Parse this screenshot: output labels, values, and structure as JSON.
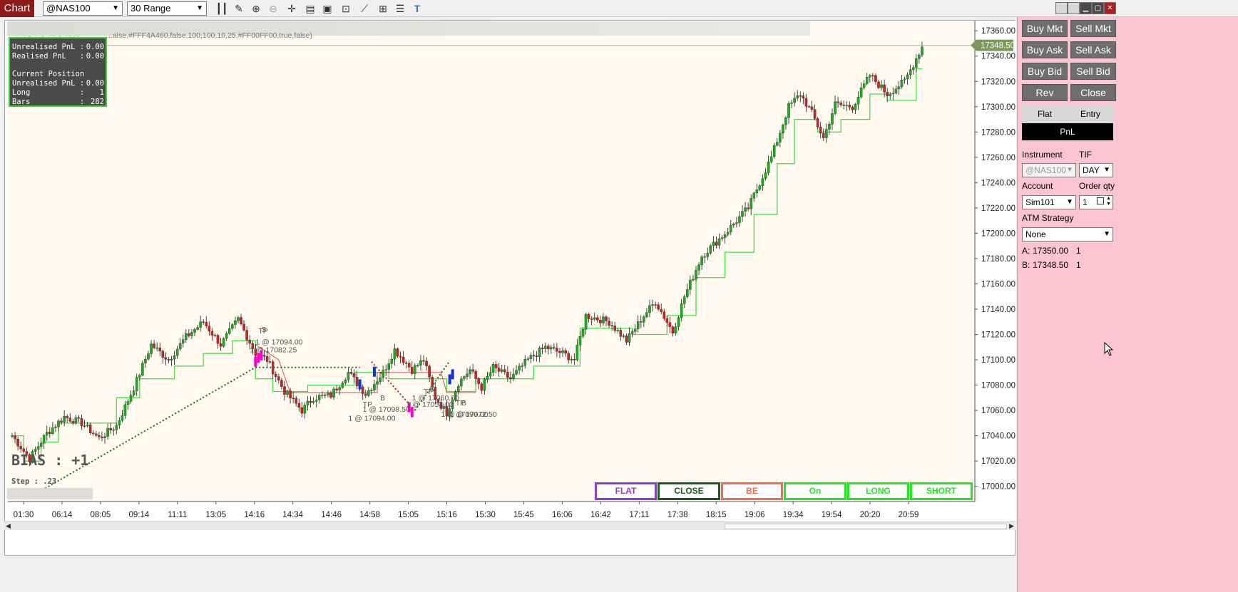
{
  "toolbar": {
    "tab_label": "Chart",
    "instrument_value": "@NAS100",
    "period_value": "30 Range"
  },
  "chart": {
    "watermark": "@NAS100",
    "params_text": "..alse,#FFF4A460,false,100,100,10,25,#FF00FF00,true,false)",
    "last_price_label": "17348.50",
    "bias_text": "BIAS : +1",
    "step_text": "Step : .23",
    "info": [
      {
        "label": "Unrealised PnL :",
        "value": "0.00"
      },
      {
        "label": "Realised PnL   :",
        "value": "0.00"
      },
      {
        "label": "",
        "value": ""
      },
      {
        "label": "Current Position",
        "value": ""
      },
      {
        "label": "Unrealised PnL :",
        "value": "0.00"
      },
      {
        "label": "Long           :",
        "value": "1"
      },
      {
        "label": "Bars           :",
        "value": "282"
      }
    ],
    "trade_labels": [
      {
        "text": "TP",
        "price": 17121,
        "bar": 85
      },
      {
        "text": "S",
        "price": 17122,
        "bar": 86
      },
      {
        "text": "1 @ 17094.00",
        "price": 17112,
        "bar": 84
      },
      {
        "text": "1 @ 17082.25",
        "price": 17106,
        "bar": 82
      },
      {
        "text": "B",
        "price": 17068,
        "bar": 127
      },
      {
        "text": "TP",
        "price": 17063,
        "bar": 121
      },
      {
        "text": "1 @ 17098.50",
        "price": 17059,
        "bar": 121
      },
      {
        "text": "1 @ 17094.00",
        "price": 17052,
        "bar": 116
      },
      {
        "text": "TP",
        "price": 17073,
        "bar": 142
      },
      {
        "text": "S",
        "price": 17075,
        "bar": 144
      },
      {
        "text": "1 @ 17060.00",
        "price": 17068,
        "bar": 138
      },
      {
        "text": "1 @ 17053.00",
        "price": 17063,
        "bar": 136
      },
      {
        "text": "TP",
        "price": 17064,
        "bar": 153
      },
      {
        "text": "B",
        "price": 17064,
        "bar": 155
      },
      {
        "text": "1 @ 17099.00",
        "price": 17055,
        "bar": 148
      },
      {
        "text": "1 @ 17072.50",
        "price": 17055,
        "bar": 151
      }
    ]
  },
  "chart_data": {
    "type": "candlestick",
    "y_range": [
      16988,
      17368
    ],
    "y_ticks": [
      17000,
      17020,
      17040,
      17060,
      17080,
      17100,
      17120,
      17140,
      17160,
      17180,
      17200,
      17220,
      17240,
      17260,
      17280,
      17300,
      17320,
      17340,
      17360
    ],
    "x_tick_labels": [
      "01:30",
      "06:14",
      "08:05",
      "09:14",
      "11:11",
      "13:05",
      "14:16",
      "14:34",
      "14:46",
      "14:58",
      "15:05",
      "15:16",
      "15:30",
      "15:45",
      "16:06",
      "16:42",
      "17:11",
      "17:38",
      "18:15",
      "19:06",
      "19:34",
      "19:54",
      "20:20",
      "20:59"
    ],
    "bar_count": 315,
    "last_price": 17348.5,
    "anchors": [
      [
        0,
        17040
      ],
      [
        6,
        17022
      ],
      [
        12,
        17042
      ],
      [
        18,
        17055
      ],
      [
        24,
        17050
      ],
      [
        30,
        17038
      ],
      [
        36,
        17048
      ],
      [
        42,
        17078
      ],
      [
        48,
        17112
      ],
      [
        54,
        17100
      ],
      [
        60,
        17118
      ],
      [
        66,
        17130
      ],
      [
        72,
        17112
      ],
      [
        78,
        17132
      ],
      [
        84,
        17105
      ],
      [
        88,
        17100
      ],
      [
        94,
        17075
      ],
      [
        100,
        17060
      ],
      [
        104,
        17070
      ],
      [
        110,
        17072
      ],
      [
        116,
        17090
      ],
      [
        122,
        17073
      ],
      [
        128,
        17090
      ],
      [
        132,
        17108
      ],
      [
        138,
        17092
      ],
      [
        142,
        17100
      ],
      [
        146,
        17070
      ],
      [
        150,
        17058
      ],
      [
        154,
        17082
      ],
      [
        158,
        17092
      ],
      [
        162,
        17078
      ],
      [
        166,
        17094
      ],
      [
        172,
        17085
      ],
      [
        178,
        17100
      ],
      [
        184,
        17110
      ],
      [
        190,
        17105
      ],
      [
        194,
        17100
      ],
      [
        198,
        17135
      ],
      [
        206,
        17130
      ],
      [
        212,
        17115
      ],
      [
        218,
        17135
      ],
      [
        222,
        17146
      ],
      [
        228,
        17122
      ],
      [
        232,
        17150
      ],
      [
        238,
        17182
      ],
      [
        246,
        17200
      ],
      [
        254,
        17220
      ],
      [
        262,
        17260
      ],
      [
        268,
        17300
      ],
      [
        272,
        17310
      ],
      [
        276,
        17295
      ],
      [
        280,
        17275
      ],
      [
        284,
        17302
      ],
      [
        290,
        17300
      ],
      [
        296,
        17325
      ],
      [
        302,
        17310
      ],
      [
        308,
        17320
      ],
      [
        315,
        17352
      ]
    ],
    "trail_levels": [
      [
        0,
        17040
      ],
      [
        4,
        17020
      ],
      [
        10,
        17035
      ],
      [
        16,
        17050
      ],
      [
        30,
        17050
      ],
      [
        36,
        17070
      ],
      [
        44,
        17085
      ],
      [
        56,
        17095
      ],
      [
        66,
        17105
      ],
      [
        76,
        17115
      ],
      [
        84,
        17085
      ],
      [
        90,
        17075
      ],
      [
        102,
        17080
      ],
      [
        118,
        17090
      ],
      [
        130,
        17085
      ],
      [
        150,
        17075
      ],
      [
        160,
        17085
      ],
      [
        180,
        17095
      ],
      [
        196,
        17125
      ],
      [
        214,
        17120
      ],
      [
        226,
        17135
      ],
      [
        236,
        17165
      ],
      [
        246,
        17185
      ],
      [
        256,
        17215
      ],
      [
        264,
        17255
      ],
      [
        270,
        17290
      ],
      [
        278,
        17280
      ],
      [
        286,
        17290
      ],
      [
        296,
        17310
      ],
      [
        302,
        17305
      ],
      [
        312,
        17330
      ]
    ]
  },
  "strategy_buttons": [
    {
      "label": "FLAT",
      "color": "#8a3fd0"
    },
    {
      "label": "CLOSE",
      "color": "#1c5c1c"
    },
    {
      "label": "BE",
      "color": "#e8704a"
    },
    {
      "label": "On",
      "color": "#22e622"
    },
    {
      "label": "LONG",
      "color": "#22e622"
    },
    {
      "label": "SHORT",
      "color": "#22e622"
    }
  ],
  "order_panel": {
    "buttons": [
      [
        "Buy Mkt",
        "Sell Mkt"
      ],
      [
        "Buy Ask",
        "Sell Ask"
      ],
      [
        "Buy Bid",
        "Sell Bid"
      ],
      [
        "Rev",
        "Close"
      ]
    ],
    "position_flat": "Flat",
    "position_entry": "Entry",
    "pnl_label": "PnL",
    "instrument_label": "Instrument",
    "tif_label": "TIF",
    "instrument_value": "@NAS100",
    "tif_value": "DAY",
    "account_label": "Account",
    "order_qty_label": "Order qty",
    "account_value": "Sim101",
    "qty_value": "1",
    "atm_label": "ATM Strategy",
    "atm_value": "None",
    "ask_label": "A:",
    "ask_price": "17350.00",
    "ask_size": "1",
    "bid_label": "B:",
    "bid_price": "17348.50",
    "bid_size": "1"
  },
  "colors": {
    "up_bar": "#22a822",
    "down_bar": "#cc2222",
    "trail_line": "#45e045",
    "panel_bg": "#fdc4d2",
    "chart_bg": "#fff9ef"
  }
}
